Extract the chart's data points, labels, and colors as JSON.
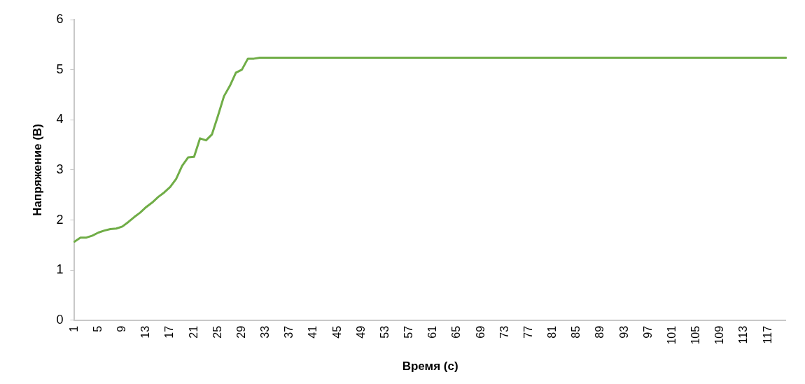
{
  "chart_data": {
    "type": "line",
    "xlabel": "Время (с)",
    "ylabel": "Напряжение (В)",
    "categories": [
      "1",
      null,
      null,
      null,
      "5",
      null,
      null,
      null,
      "9",
      null,
      null,
      null,
      "13",
      null,
      null,
      null,
      "17",
      null,
      null,
      null,
      "21",
      null,
      null,
      null,
      "25",
      null,
      null,
      null,
      "29",
      null,
      null,
      null,
      "33",
      null,
      null,
      null,
      "37",
      null,
      null,
      null,
      "41",
      null,
      null,
      null,
      "45",
      null,
      null,
      null,
      "49",
      null,
      null,
      null,
      "53",
      null,
      null,
      null,
      "57",
      null,
      null,
      null,
      "61",
      null,
      null,
      null,
      "65",
      null,
      null,
      null,
      "69",
      null,
      null,
      null,
      "73",
      null,
      null,
      null,
      "77",
      null,
      null,
      null,
      "81",
      null,
      null,
      null,
      "85",
      null,
      null,
      null,
      "89",
      null,
      null,
      null,
      "93",
      null,
      null,
      null,
      "97",
      null,
      null,
      null,
      "101",
      null,
      null,
      null,
      "105",
      null,
      null,
      null,
      "109",
      null,
      null,
      null,
      "113",
      null,
      null,
      null,
      "117",
      null,
      null,
      null
    ],
    "series": [
      {
        "color": "#70ad47",
        "values": [
          1.57,
          1.65,
          1.65,
          1.69,
          1.75,
          1.79,
          1.82,
          1.83,
          1.87,
          1.96,
          2.06,
          2.15,
          2.26,
          2.35,
          2.46,
          2.55,
          2.66,
          2.82,
          3.08,
          3.25,
          3.26,
          3.63,
          3.59,
          3.71,
          4.08,
          4.47,
          4.68,
          4.94,
          5.0,
          5.22,
          5.22,
          5.24,
          5.24,
          5.24,
          5.24,
          5.24,
          5.24,
          5.24,
          5.24,
          5.24,
          5.24,
          5.24,
          5.24,
          5.24,
          5.24,
          5.24,
          5.24,
          5.24,
          5.24,
          5.24,
          5.24,
          5.24,
          5.24,
          5.24,
          5.24,
          5.24,
          5.24,
          5.24,
          5.24,
          5.24,
          5.24,
          5.24,
          5.24,
          5.24,
          5.24,
          5.24,
          5.24,
          5.24,
          5.24,
          5.24,
          5.24,
          5.24,
          5.24,
          5.24,
          5.24,
          5.24,
          5.24,
          5.24,
          5.24,
          5.24,
          5.24,
          5.24,
          5.24,
          5.24,
          5.24,
          5.24,
          5.24,
          5.24,
          5.24,
          5.24,
          5.24,
          5.24,
          5.24,
          5.24,
          5.24,
          5.24,
          5.24,
          5.24,
          5.24,
          5.24,
          5.24,
          5.24,
          5.24,
          5.24,
          5.24,
          5.24,
          5.24,
          5.24,
          5.24,
          5.24,
          5.24,
          5.24,
          5.24,
          5.24,
          5.24,
          5.24,
          5.24,
          5.24,
          5.24,
          5.24
        ]
      }
    ],
    "ylim": [
      0,
      6
    ],
    "yticks": [
      0,
      1,
      2,
      3,
      4,
      5,
      6
    ],
    "grid": false,
    "legend": false,
    "marker": "none",
    "line_style": "solid"
  }
}
